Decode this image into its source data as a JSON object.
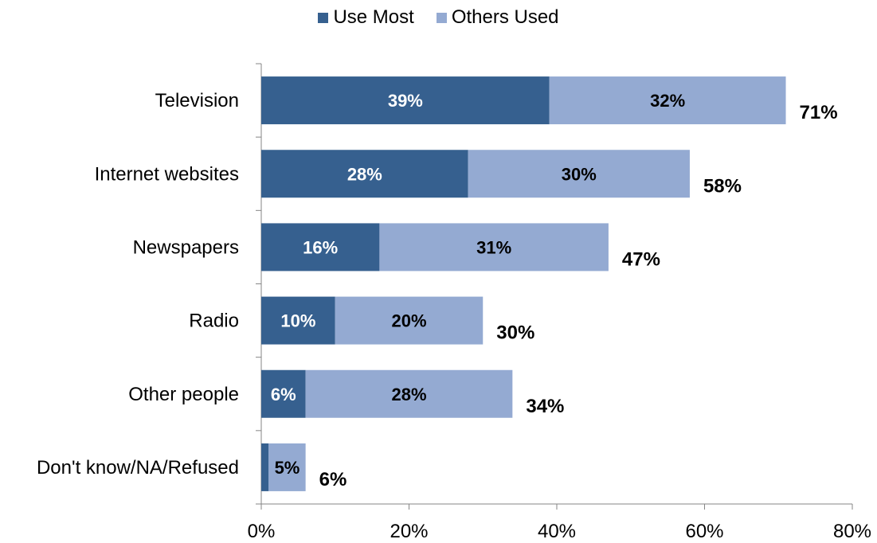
{
  "chart_data": {
    "type": "bar",
    "orientation": "horizontal",
    "stacked": true,
    "categories": [
      "Television",
      "Internet websites",
      "Newspapers",
      "Radio",
      "Other people",
      "Don't know/NA/Refused"
    ],
    "series": [
      {
        "name": "Use Most",
        "values": [
          39,
          28,
          16,
          10,
          6,
          1
        ],
        "labels": [
          "39%",
          "28%",
          "16%",
          "10%",
          "6%",
          ""
        ],
        "color": "#36608f"
      },
      {
        "name": "Others Used",
        "values": [
          32,
          30,
          31,
          20,
          28,
          5
        ],
        "labels": [
          "32%",
          "30%",
          "31%",
          "20%",
          "28%",
          "5%"
        ],
        "color": "#94aad2"
      }
    ],
    "totals": [
      71,
      58,
      47,
      30,
      34,
      6
    ],
    "total_labels": [
      "71%",
      "58%",
      "47%",
      "30%",
      "34%",
      "6%"
    ],
    "xlim": [
      0,
      80
    ],
    "x_ticks": [
      0,
      20,
      40,
      60,
      80
    ],
    "x_tick_labels": [
      "0%",
      "20%",
      "40%",
      "60%",
      "80%"
    ],
    "legend_position": "top-center",
    "grid": false
  }
}
